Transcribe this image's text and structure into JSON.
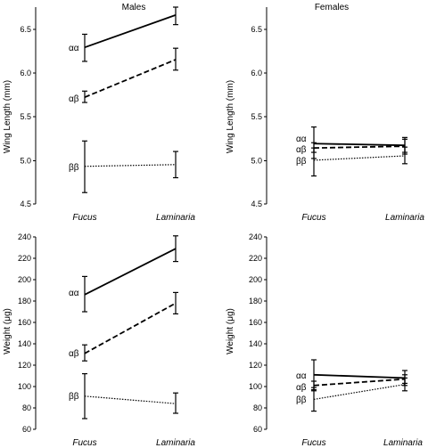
{
  "chart_data": [
    {
      "type": "line",
      "panel": "males-wing",
      "title": "Males",
      "ylabel": "Wing Length (mm)",
      "categories": [
        "Fucus",
        "Laminaria"
      ],
      "ylim": [
        4.5,
        6.75
      ],
      "yticks": [
        "4.5",
        "5.0",
        "5.5",
        "6.0",
        "6.5"
      ],
      "series": [
        {
          "name": "αα",
          "style": "solid",
          "values": [
            6.29,
            6.66
          ],
          "err_low": [
            6.13,
            6.55
          ],
          "err_high": [
            6.44,
            6.75
          ]
        },
        {
          "name": "αβ",
          "style": "dashed",
          "values": [
            5.72,
            6.15
          ],
          "err_low": [
            5.66,
            6.03
          ],
          "err_high": [
            5.79,
            6.28
          ]
        },
        {
          "name": "ββ",
          "style": "dotted",
          "values": [
            4.93,
            4.95
          ],
          "err_low": [
            4.63,
            4.8
          ],
          "err_high": [
            5.22,
            5.1
          ]
        }
      ]
    },
    {
      "type": "line",
      "panel": "females-wing",
      "title": "Females",
      "ylabel": "Wing Length (mm)",
      "categories": [
        "Fucus",
        "Laminaria"
      ],
      "ylim": [
        4.5,
        6.75
      ],
      "yticks": [
        "4.5",
        "5.0",
        "5.5",
        "6.0",
        "6.5"
      ],
      "series": [
        {
          "name": "αα",
          "style": "solid",
          "values": [
            5.19,
            5.17
          ],
          "err_low": [
            5.02,
            5.09
          ],
          "err_high": [
            5.38,
            5.26
          ]
        },
        {
          "name": "αβ",
          "style": "dashed",
          "values": [
            5.14,
            5.16
          ],
          "err_low": [
            5.09,
            5.07
          ],
          "err_high": [
            5.2,
            5.24
          ]
        },
        {
          "name": "ββ",
          "style": "dotted",
          "values": [
            5.0,
            5.05
          ],
          "err_low": [
            4.82,
            4.96
          ],
          "err_high": [
            5.14,
            5.15
          ]
        }
      ]
    },
    {
      "type": "line",
      "panel": "males-weight",
      "title": "",
      "ylabel": "Weight (μg)",
      "categories": [
        "Fucus",
        "Laminaria"
      ],
      "ylim": [
        60,
        240
      ],
      "yticks": [
        "60",
        "80",
        "100",
        "120",
        "140",
        "160",
        "180",
        "200",
        "220",
        "240"
      ],
      "series": [
        {
          "name": "αα",
          "style": "solid",
          "values": [
            186,
            229
          ],
          "err_low": [
            170,
            217
          ],
          "err_high": [
            203,
            241
          ]
        },
        {
          "name": "αβ",
          "style": "dashed",
          "values": [
            131,
            178
          ],
          "err_low": [
            124,
            168
          ],
          "err_high": [
            139,
            188
          ]
        },
        {
          "name": "ββ",
          "style": "dotted",
          "values": [
            91,
            84
          ],
          "err_low": [
            70,
            75
          ],
          "err_high": [
            112,
            94
          ]
        }
      ]
    },
    {
      "type": "line",
      "panel": "females-weight",
      "title": "",
      "ylabel": "Weight (μg)",
      "categories": [
        "Fucus",
        "Laminaria"
      ],
      "ylim": [
        60,
        240
      ],
      "yticks": [
        "60",
        "80",
        "100",
        "120",
        "140",
        "160",
        "180",
        "200",
        "220",
        "240"
      ],
      "series": [
        {
          "name": "αα",
          "style": "solid",
          "values": [
            111,
            108
          ],
          "err_low": [
            96,
            101
          ],
          "err_high": [
            125,
            115
          ]
        },
        {
          "name": "αβ",
          "style": "dashed",
          "values": [
            101,
            107
          ],
          "err_low": [
            97,
            103
          ],
          "err_high": [
            105,
            111
          ]
        },
        {
          "name": "ββ",
          "style": "dotted",
          "values": [
            88,
            102
          ],
          "err_low": [
            77,
            96
          ],
          "err_high": [
            99,
            108
          ]
        }
      ]
    }
  ]
}
